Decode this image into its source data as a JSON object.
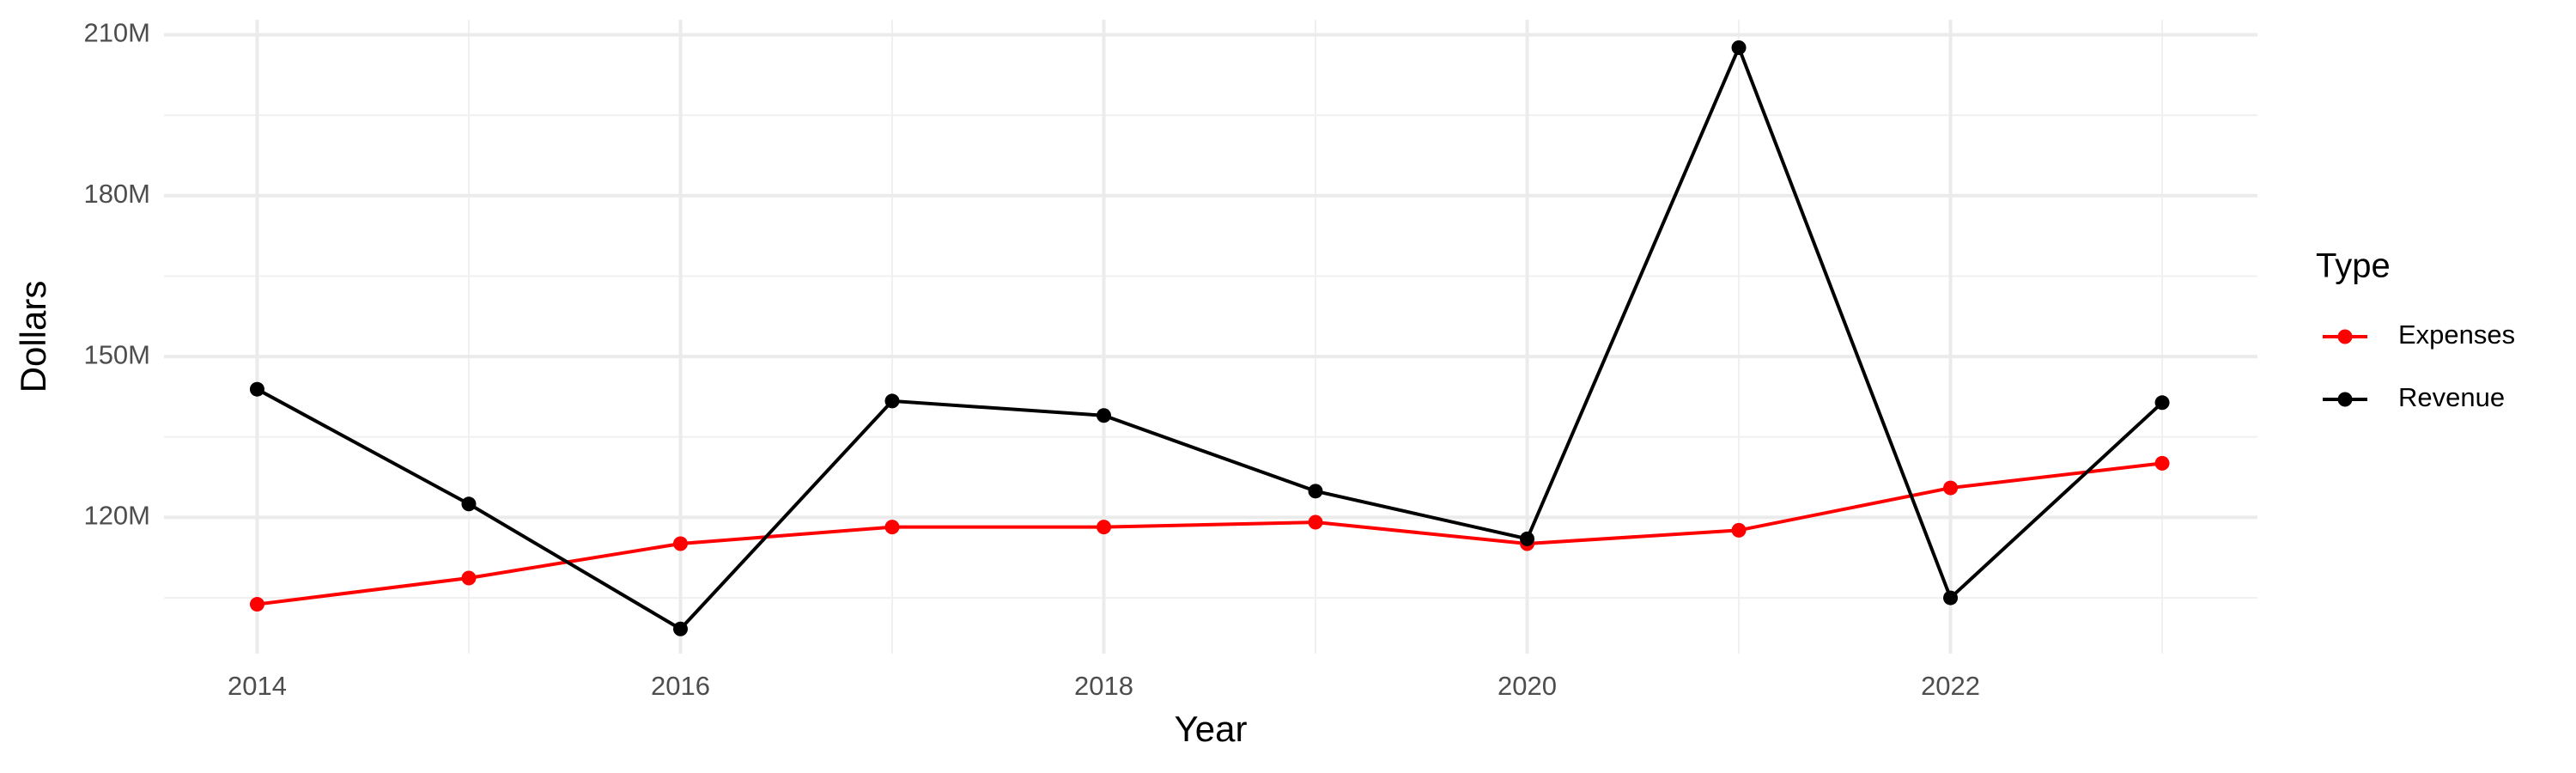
{
  "chart_data": {
    "type": "line",
    "x_label": "Year",
    "y_label": "Dollars",
    "legend_title": "Type",
    "legend": "right",
    "grid": true,
    "x": [
      2014,
      2015,
      2016,
      2017,
      2018,
      2019,
      2020,
      2021,
      2022,
      2023
    ],
    "series": [
      {
        "name": "Expenses",
        "color": "#ff0000",
        "values": [
          103800000,
          108700000,
          115100000,
          118200000,
          118200000,
          119100000,
          115100000,
          117600000,
          125500000,
          130100000
        ]
      },
      {
        "name": "Revenue",
        "color": "#000000",
        "values": [
          143900000,
          122500000,
          99200000,
          141700000,
          139000000,
          124900000,
          116000000,
          207600000,
          105000000,
          141400000
        ]
      }
    ],
    "xlim": [
      2013.56,
      2023.45
    ],
    "xticks": [
      2014,
      2016,
      2018,
      2020,
      2022
    ],
    "ylim": [
      94600000,
      212800000
    ],
    "yticks": [
      {
        "value": 120000000,
        "label": "120M"
      },
      {
        "value": 150000000,
        "label": "150M"
      },
      {
        "value": 180000000,
        "label": "180M"
      },
      {
        "value": 210000000,
        "label": "210M"
      }
    ]
  }
}
